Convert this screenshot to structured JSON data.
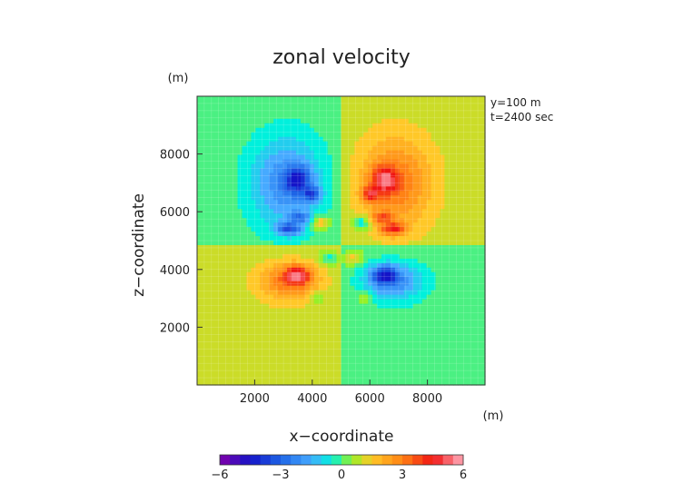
{
  "chart_data": {
    "type": "heatmap",
    "title": "zonal velocity",
    "xlabel": "x−coordinate",
    "ylabel": "z−coordinate",
    "x_unit": "(m)",
    "y_unit": "(m)",
    "annotations": [
      "y=100  m",
      "t=2400 sec"
    ],
    "xlim": [
      0,
      10000
    ],
    "ylim": [
      0,
      10000
    ],
    "x_ticks": [
      2000,
      4000,
      6000,
      8000
    ],
    "y_ticks": [
      2000,
      4000,
      6000,
      8000
    ],
    "x_tick_labels": [
      "2000",
      "4000",
      "6000",
      "8000"
    ],
    "y_tick_labels": [
      "2000",
      "4000",
      "6000",
      "8000"
    ],
    "grid": true,
    "background_quadrants": {
      "upper_left": 0,
      "upper_right": 1,
      "lower_left": 1,
      "lower_right": 0,
      "split_x": 5000,
      "split_z": 4800
    },
    "features": [
      {
        "x": 3100,
        "z": 7000,
        "sx": 1200,
        "sz": 1500,
        "v": -2.2
      },
      {
        "x": 3500,
        "z": 7100,
        "sx": 450,
        "sz": 450,
        "v": -2.8
      },
      {
        "x": 4000,
        "z": 6600,
        "sx": 300,
        "sz": 250,
        "v": -2.5
      },
      {
        "x": 3200,
        "z": 5400,
        "sx": 400,
        "sz": 220,
        "v": -3.0
      },
      {
        "x": 3600,
        "z": 5800,
        "sx": 350,
        "sz": 200,
        "v": -2.0
      },
      {
        "x": 4300,
        "z": 5600,
        "sx": 300,
        "sz": 250,
        "v": 2.0
      },
      {
        "x": 6900,
        "z": 7000,
        "sx": 1200,
        "sz": 1500,
        "v": 2.2
      },
      {
        "x": 6500,
        "z": 7100,
        "sx": 450,
        "sz": 450,
        "v": 2.8
      },
      {
        "x": 6000,
        "z": 6600,
        "sx": 300,
        "sz": 250,
        "v": 2.5
      },
      {
        "x": 6800,
        "z": 5400,
        "sx": 400,
        "sz": 220,
        "v": 3.0
      },
      {
        "x": 6400,
        "z": 5800,
        "sx": 350,
        "sz": 200,
        "v": 2.0
      },
      {
        "x": 5700,
        "z": 5600,
        "sx": 300,
        "sz": 250,
        "v": -2.0
      },
      {
        "x": 3200,
        "z": 3600,
        "sx": 1000,
        "sz": 650,
        "v": 2.2
      },
      {
        "x": 3500,
        "z": 3800,
        "sx": 450,
        "sz": 300,
        "v": 3.0
      },
      {
        "x": 6800,
        "z": 3600,
        "sx": 1000,
        "sz": 650,
        "v": -2.2
      },
      {
        "x": 6500,
        "z": 3800,
        "sx": 450,
        "sz": 300,
        "v": -3.0
      },
      {
        "x": 4600,
        "z": 4400,
        "sx": 300,
        "sz": 250,
        "v": -1.5
      },
      {
        "x": 5400,
        "z": 4400,
        "sx": 300,
        "sz": 250,
        "v": 1.5
      },
      {
        "x": 4200,
        "z": 3000,
        "sx": 250,
        "sz": 200,
        "v": -1.2
      },
      {
        "x": 5800,
        "z": 3000,
        "sx": 250,
        "sz": 200,
        "v": 1.2
      }
    ],
    "colorbar": {
      "min": -6,
      "max": 6,
      "tick_values": [
        -6,
        -3,
        0,
        3,
        6
      ],
      "tick_labels": [
        "−6",
        "−3",
        "0",
        "3",
        "6"
      ],
      "levels": 24
    }
  }
}
